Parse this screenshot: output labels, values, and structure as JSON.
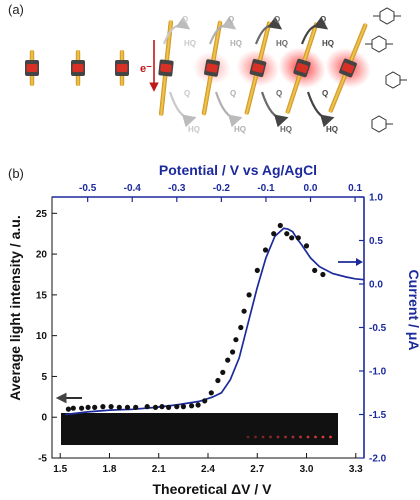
{
  "panel_a": {
    "label": "(a)",
    "electron_label": "e⁻",
    "q_label": "Q",
    "hq_label": "HQ",
    "wire_count": 9
  },
  "panel_b": {
    "label": "(b)"
  },
  "colors": {
    "blue": "#1c2a9c",
    "gold": "#e8b53a",
    "points": "#111111",
    "glow": "#ff2a2a",
    "strip": "#111111"
  },
  "chart_data": {
    "type": "scatter",
    "xlabel": "Theoretical ΔV / V",
    "ylabel": "Average light intensity / a.u.",
    "x2label": "Potential / V vs Ag/AgCl",
    "y2label": "Current / μA",
    "xlim": [
      1.45,
      3.35
    ],
    "ylim": [
      -5,
      27
    ],
    "x2lim": [
      -0.58,
      0.12
    ],
    "y2lim": [
      -2.0,
      1.0
    ],
    "xticks": [
      "1.5",
      "1.8",
      "2.1",
      "2.4",
      "2.7",
      "3.0",
      "3.3"
    ],
    "yticks": [
      "-5",
      "0",
      "5",
      "10",
      "15",
      "20",
      "25"
    ],
    "x2ticks": [
      "-0.5",
      "-0.4",
      "-0.3",
      "-0.2",
      "-0.1",
      "0.0",
      "0.1"
    ],
    "y2ticks": [
      "-2.0",
      "-1.5",
      "-1.0",
      "-0.5",
      "0.0",
      "0.5",
      "1.0"
    ],
    "series": [
      {
        "axes": "bottom-left",
        "x": [
          1.55,
          1.58,
          1.63,
          1.67,
          1.71,
          1.76,
          1.81,
          1.86,
          1.91,
          1.96,
          2.03,
          2.08,
          2.12,
          2.16,
          2.21,
          2.25,
          2.3,
          2.34,
          2.38,
          2.42,
          2.46,
          2.49,
          2.52,
          2.55,
          2.57,
          2.6,
          2.62,
          2.65,
          2.7,
          2.75,
          2.8,
          2.84,
          2.88,
          2.91,
          2.95,
          3.0,
          3.05,
          3.1
        ],
        "y": [
          1.0,
          1.1,
          1.1,
          1.2,
          1.2,
          1.3,
          1.3,
          1.2,
          1.2,
          1.2,
          1.3,
          1.2,
          1.3,
          1.2,
          1.3,
          1.3,
          1.4,
          1.5,
          2.0,
          3.0,
          4.5,
          5.5,
          7.0,
          8.0,
          9.5,
          11.0,
          13.0,
          15.0,
          18.0,
          20.5,
          22.5,
          23.5,
          22.5,
          22.0,
          22.0,
          21.0,
          18.0,
          17.5
        ]
      },
      {
        "axes": "top-right",
        "x": [
          -0.55,
          -0.5,
          -0.45,
          -0.4,
          -0.35,
          -0.3,
          -0.25,
          -0.22,
          -0.2,
          -0.18,
          -0.16,
          -0.14,
          -0.12,
          -0.1,
          -0.08,
          -0.06,
          -0.05,
          -0.04,
          -0.03,
          -0.02,
          0.0,
          0.02,
          0.05,
          0.08,
          0.1,
          0.12
        ],
        "y": [
          -1.5,
          -1.47,
          -1.45,
          -1.44,
          -1.42,
          -1.39,
          -1.35,
          -1.3,
          -1.25,
          -1.1,
          -0.85,
          -0.45,
          -0.05,
          0.3,
          0.55,
          0.64,
          0.63,
          0.6,
          0.52,
          0.45,
          0.3,
          0.2,
          0.12,
          0.08,
          0.06,
          0.05
        ]
      }
    ],
    "arrows": [
      "left",
      "right"
    ],
    "inset": "emission strip image along bottom of plot"
  }
}
